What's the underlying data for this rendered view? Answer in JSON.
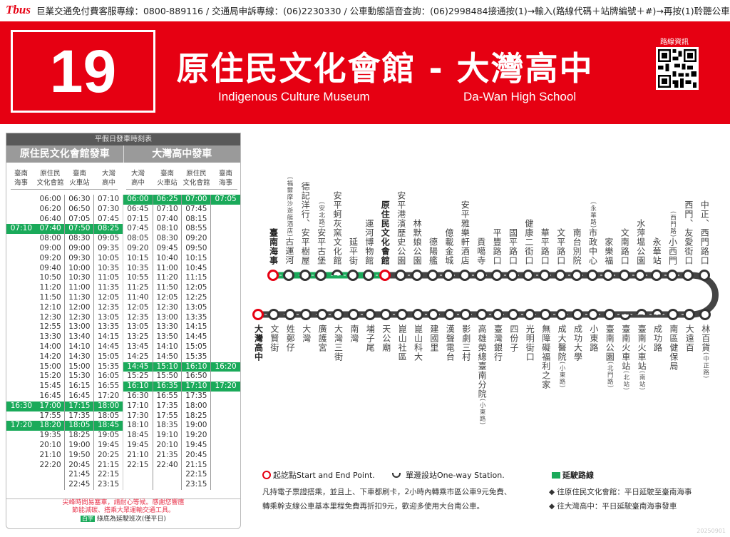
{
  "topbar": {
    "logo": "Tbus",
    "hotline": "巨業交通免付費客服專線：0800-889116 / 交通局申訴專線：(06)2230330 / 公車動態語音查詢：(06)2998484接通按(1)→輸入(路線代碼＋站牌編號＋#)→再按(1)聆聽公車資訊"
  },
  "header": {
    "route_number": "19",
    "title": "原住民文化會館 - 大灣高中",
    "origin_en": "Indigenous Culture Museum",
    "dest_en": "Da-Wan High School",
    "qr_label": "路線資訊"
  },
  "colors": {
    "brand_red": "#e60012",
    "extension_green": "#1aaa5a",
    "route_gray": "#444444"
  },
  "timetable": {
    "title": "平假日發車時刻表",
    "outbound": {
      "label": "原住民文化會館發車",
      "columns": [
        "臺南\n海事",
        "原住民\n文化會館",
        "臺南\n火車站",
        "大灣\n高中"
      ],
      "highlight_rows": [
        3,
        21,
        23
      ],
      "cols": [
        [
          "",
          "",
          "",
          "07:10",
          "",
          "",
          "",
          "",
          "",
          "",
          "",
          "",
          "",
          "",
          "",
          "",
          "",
          "",
          "",
          "",
          "",
          "16:30",
          "",
          "17:20",
          "",
          "",
          "",
          "",
          "",
          ""
        ],
        [
          "06:00",
          "06:20",
          "06:40",
          "07:40",
          "08:00",
          "09:00",
          "09:20",
          "09:40",
          "10:50",
          "11:20",
          "11:50",
          "12:10",
          "12:30",
          "12:55",
          "13:30",
          "14:00",
          "14:20",
          "15:00",
          "15:20",
          "15:45",
          "16:45",
          "17:00",
          "17:55",
          "18:20",
          "19:35",
          "20:10",
          "21:10",
          "22:20",
          "",
          ""
        ],
        [
          "06:30",
          "06:50",
          "07:05",
          "07:50",
          "08:30",
          "09:00",
          "09:30",
          "10:00",
          "10:30",
          "11:00",
          "11:30",
          "12:00",
          "12:30",
          "13:00",
          "13:40",
          "14:10",
          "14:30",
          "15:00",
          "15:30",
          "16:15",
          "16:45",
          "17:15",
          "17:35",
          "18:05",
          "18:25",
          "19:00",
          "19:50",
          "20:45",
          "21:45",
          "22:45"
        ],
        [
          "07:10",
          "07:30",
          "07:45",
          "08:25",
          "09:05",
          "09:35",
          "10:05",
          "10:35",
          "11:05",
          "11:35",
          "12:05",
          "12:35",
          "13:05",
          "13:35",
          "14:15",
          "14:45",
          "15:05",
          "15:35",
          "16:05",
          "16:55",
          "17:20",
          "18:00",
          "18:05",
          "18:45",
          "19:05",
          "19:45",
          "20:25",
          "21:15",
          "22:15",
          "23:15"
        ]
      ]
    },
    "inbound": {
      "label": "大灣高中發車",
      "columns": [
        "大灣\n高中",
        "臺南\n火車站",
        "原住民\n文化會館",
        "臺南\n海事"
      ],
      "highlight_rows": [
        0,
        17,
        19
      ],
      "cols": [
        [
          "06:00",
          "06:45",
          "07:15",
          "07:45",
          "08:05",
          "09:20",
          "10:15",
          "10:35",
          "10:55",
          "11:25",
          "11:40",
          "12:05",
          "12:35",
          "13:05",
          "13:25",
          "13:45",
          "14:25",
          "14:45",
          "15:25",
          "16:10",
          "16:30",
          "17:10",
          "17:30",
          "18:10",
          "18:45",
          "19:45",
          "21:10",
          "22:15",
          "",
          ""
        ],
        [
          "06:25",
          "07:10",
          "07:40",
          "08:10",
          "08:30",
          "09:45",
          "10:40",
          "11:00",
          "11:20",
          "11:50",
          "12:05",
          "12:30",
          "13:00",
          "13:30",
          "13:50",
          "14:10",
          "14:50",
          "15:10",
          "15:50",
          "16:35",
          "16:55",
          "17:35",
          "17:55",
          "18:35",
          "19:10",
          "20:10",
          "21:35",
          "22:40",
          "",
          ""
        ],
        [
          "07:00",
          "07:45",
          "08:15",
          "08:55",
          "09:20",
          "09:50",
          "10:15",
          "10:45",
          "11:15",
          "12:05",
          "12:25",
          "13:05",
          "13:35",
          "14:15",
          "14:45",
          "15:05",
          "15:35",
          "16:10",
          "16:50",
          "17:10",
          "17:35",
          "18:00",
          "18:25",
          "19:00",
          "19:20",
          "19:45",
          "20:45",
          "21:15",
          "22:15",
          "23:15"
        ],
        [
          "07:05",
          "",
          "",
          "",
          "",
          "",
          "",
          "",
          "",
          "",
          "",
          "",
          "",
          "",
          "",
          "",
          "",
          "16:20",
          "",
          "17:20",
          "",
          "",
          "",
          "",
          "",
          "",
          "",
          "",
          "",
          ""
        ]
      ]
    },
    "note1": "尖峰時間易塞車，請耐心等候。感謝您響應",
    "note2": "節能減碳、搭乘大眾運輸交通工具。",
    "badge": "白字",
    "note3": "綠底為延駛班次(僅平日)"
  },
  "route": {
    "top": [
      {
        "name": "臺南海事",
        "type": "start",
        "bold": true
      },
      {
        "name": "古運河",
        "note": "(福爾摩沙遊艇酒店)"
      },
      {
        "name": "德記洋行、安平樹屋"
      },
      {
        "name": "安平古堡",
        "note": "(安北路)"
      },
      {
        "name": "安平蚵灰窯文化館",
        "type": "oneway-up"
      },
      {
        "name": "延平街"
      },
      {
        "name": "運河博物館"
      },
      {
        "name": "原住民文化會館",
        "type": "start",
        "bold": true
      },
      {
        "name": "安平港濱歷史公園"
      },
      {
        "name": "林默娘公園"
      },
      {
        "name": "德陽艦"
      },
      {
        "name": "億載金城"
      },
      {
        "name": "安平雅樂軒酒店"
      },
      {
        "name": "貢噶寺"
      },
      {
        "name": "平豐路口"
      },
      {
        "name": "國平路口"
      },
      {
        "name": "健康二街口"
      },
      {
        "name": "華平路口"
      },
      {
        "name": "文平路口"
      },
      {
        "name": "南台別院"
      },
      {
        "name": "市政中心",
        "note": "(永華路)"
      },
      {
        "name": "家樂福"
      },
      {
        "name": "文南路口"
      },
      {
        "name": "水萍塭公園"
      },
      {
        "name": "永華站"
      },
      {
        "name": "小西門",
        "note": "(西門路)"
      },
      {
        "name": "西門、友愛街口"
      },
      {
        "name": "中正、西門路口"
      }
    ],
    "bottom": [
      {
        "name": "大灣高中",
        "type": "start",
        "bold": true
      },
      {
        "name": "文賢街"
      },
      {
        "name": "姓鄭仔"
      },
      {
        "name": "大灣"
      },
      {
        "name": "廣護宮"
      },
      {
        "name": "大灣三街"
      },
      {
        "name": "南灣"
      },
      {
        "name": "埔子尾"
      },
      {
        "name": "天公廟"
      },
      {
        "name": "崑山社區"
      },
      {
        "name": "崑山科大"
      },
      {
        "name": "建國里"
      },
      {
        "name": "漢聲電台"
      },
      {
        "name": "影劇三村"
      },
      {
        "name": "高雄榮總臺南分院",
        "note": "(小東路)"
      },
      {
        "name": "臺灣銀行"
      },
      {
        "name": "四份子"
      },
      {
        "name": "光明街口"
      },
      {
        "name": "無障礙福利之家"
      },
      {
        "name": "成大醫院",
        "note": "(小東路)"
      },
      {
        "name": "成功大學"
      },
      {
        "name": "小東路"
      },
      {
        "name": "臺南公園",
        "note": "(北門路)"
      },
      {
        "name": "臺南火車站",
        "note": "(北站)",
        "type": "oneway-down"
      },
      {
        "name": "臺南火車站",
        "note": "(南站)",
        "type": "oneway-up"
      },
      {
        "name": "成功路",
        "type": "oneway-up"
      },
      {
        "name": "南區健保局"
      },
      {
        "name": "大遠百"
      },
      {
        "name": "林百貨",
        "note": "(中正路)"
      }
    ]
  },
  "legend": {
    "start": "起訖點Start and End Point.",
    "oneway": "單邊設站One-way Station.",
    "extension": "延駛路線",
    "info1": "凡持電子票證搭乘，並且上、下車都刷卡，2小時內轉乘市區公車9元免費、",
    "info2": "轉乘幹支線公車基本里程免費再折扣9元，歡迎多使用大台南公車。",
    "dir1": "往原住民文化會館：平日延駛至臺南海事",
    "dir2": "往大灣高中：平日延駛臺南海事發車"
  },
  "version": "20250901"
}
